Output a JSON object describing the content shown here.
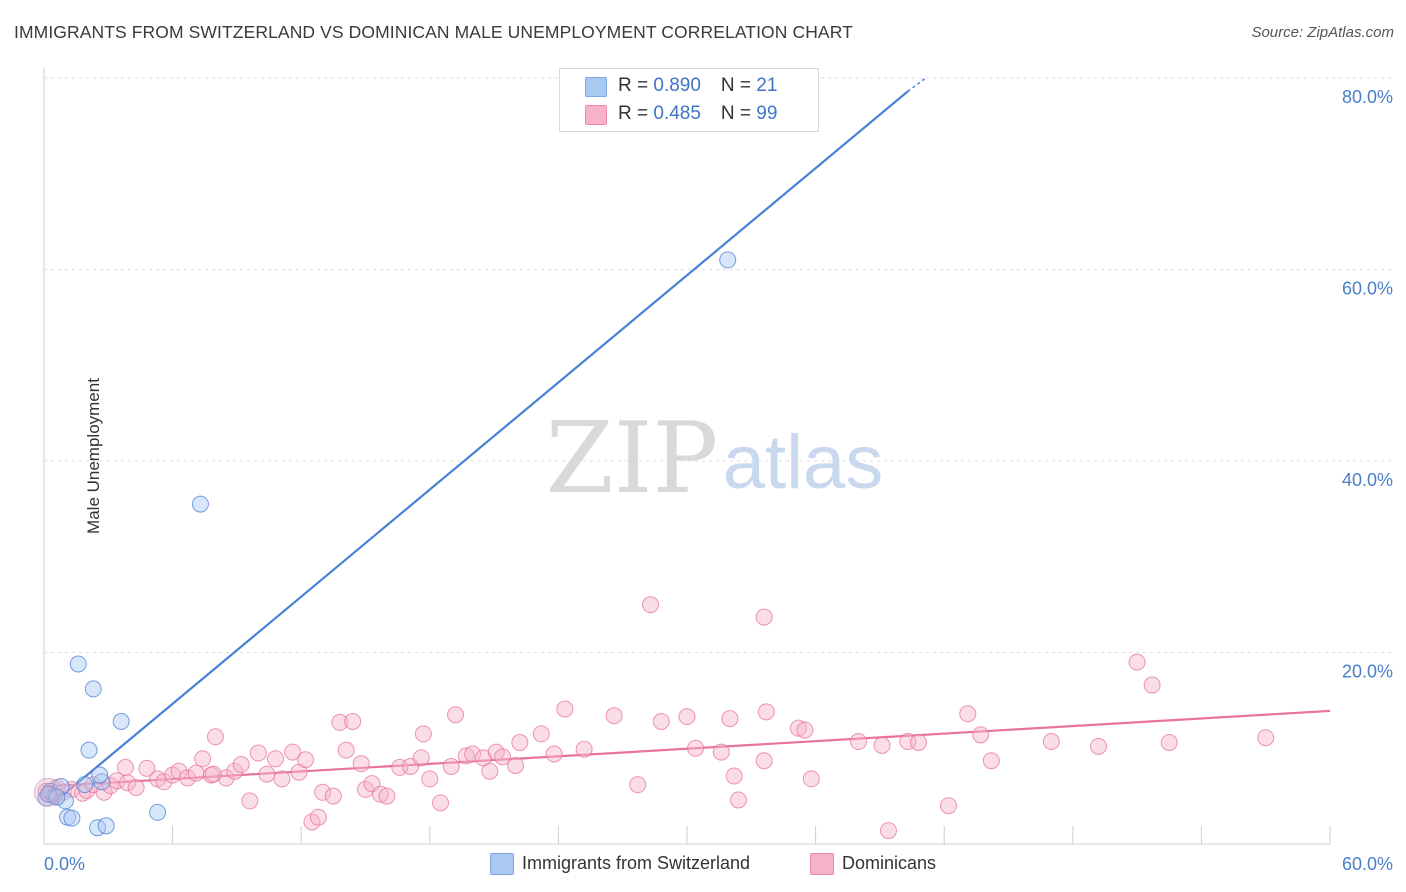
{
  "title": "IMMIGRANTS FROM SWITZERLAND VS DOMINICAN MALE UNEMPLOYMENT CORRELATION CHART",
  "source": "Source: ZipAtlas.com",
  "watermark": {
    "zip": "ZIP",
    "atlas": "atlas"
  },
  "stats": [
    {
      "r_label": "R = ",
      "r_value": "0.890",
      "n_label": "N = ",
      "n_value": "21",
      "color": "#a9c8f2"
    },
    {
      "r_label": "R = ",
      "r_value": "0.485",
      "n_label": "N = ",
      "n_value": "99",
      "color": "#f6b3c8"
    }
  ],
  "legend": [
    {
      "label": "Immigrants from Switzerland",
      "color": "#a9c8f2"
    },
    {
      "label": "Dominicans",
      "color": "#f6b3c8"
    }
  ],
  "chart_data": {
    "type": "scatter",
    "title": "IMMIGRANTS FROM SWITZERLAND VS DOMINICAN MALE UNEMPLOYMENT CORRELATION CHART",
    "xlabel": "",
    "ylabel": "Male Unemployment",
    "xlim": [
      0,
      60
    ],
    "ylim": [
      0,
      80
    ],
    "x_tick_labels": [
      {
        "value": 0,
        "label": "0.0%"
      },
      {
        "value": 60,
        "label": "60.0%"
      }
    ],
    "y_tick_labels": [
      {
        "value": 80,
        "label": "80.0%"
      },
      {
        "value": 60,
        "label": "60.0%"
      },
      {
        "value": 40,
        "label": "40.0%"
      },
      {
        "value": 20,
        "label": "20.0%"
      }
    ],
    "grid": true,
    "legend_position": "bottom-center",
    "series": [
      {
        "name": "Immigrants from Switzerland",
        "color": "#4a7fd4",
        "fill": "#a9c8f2",
        "points": [
          [
            0.1,
            4.8
          ],
          [
            0.3,
            5.5
          ],
          [
            0.5,
            5.0
          ],
          [
            0.8,
            6.0
          ],
          [
            1.0,
            4.5
          ],
          [
            1.1,
            2.8
          ],
          [
            1.3,
            2.7
          ],
          [
            1.6,
            18.8
          ],
          [
            2.1,
            9.8
          ],
          [
            2.3,
            16.2
          ],
          [
            2.5,
            1.7
          ],
          [
            2.7,
            6.5
          ],
          [
            2.6,
            7.2
          ],
          [
            2.9,
            1.9
          ],
          [
            3.6,
            12.8
          ],
          [
            5.3,
            3.3
          ],
          [
            7.3,
            35.5
          ],
          [
            31.9,
            61.0
          ],
          [
            0.2,
            5.2
          ],
          [
            0.6,
            4.9
          ],
          [
            1.9,
            6.2
          ]
        ],
        "trendline": {
          "x": [
            0.4,
            40.3
          ],
          "y": [
            4.2,
            78.6
          ]
        },
        "trendline_dashed": {
          "x": [
            40.3,
            41.2
          ],
          "y": [
            78.6,
            80.1
          ]
        }
      },
      {
        "name": "Dominicans",
        "color": "#e8739c",
        "fill": "#f6b3c8",
        "points": [
          [
            0.1,
            5.5
          ],
          [
            0.3,
            5.2
          ],
          [
            0.6,
            5.9
          ],
          [
            0.9,
            5.4
          ],
          [
            1.3,
            5.7
          ],
          [
            1.8,
            5.3
          ],
          [
            2.0,
            5.6
          ],
          [
            2.3,
            6.2
          ],
          [
            2.8,
            5.4
          ],
          [
            3.1,
            6.1
          ],
          [
            3.4,
            6.6
          ],
          [
            3.9,
            6.4
          ],
          [
            4.3,
            5.9
          ],
          [
            4.8,
            7.9
          ],
          [
            5.3,
            6.8
          ],
          [
            5.6,
            6.5
          ],
          [
            6.0,
            7.2
          ],
          [
            6.3,
            7.6
          ],
          [
            6.7,
            6.9
          ],
          [
            7.1,
            7.4
          ],
          [
            7.4,
            8.9
          ],
          [
            7.8,
            7.2
          ],
          [
            8.0,
            11.2
          ],
          [
            8.5,
            6.9
          ],
          [
            8.9,
            7.6
          ],
          [
            9.2,
            8.3
          ],
          [
            9.6,
            4.5
          ],
          [
            10.0,
            9.5
          ],
          [
            10.4,
            7.3
          ],
          [
            10.8,
            8.9
          ],
          [
            11.1,
            6.8
          ],
          [
            11.6,
            9.6
          ],
          [
            11.9,
            7.5
          ],
          [
            12.2,
            8.8
          ],
          [
            12.5,
            2.3
          ],
          [
            12.8,
            2.8
          ],
          [
            13.0,
            5.4
          ],
          [
            13.5,
            5.0
          ],
          [
            13.8,
            12.7
          ],
          [
            14.1,
            9.8
          ],
          [
            14.4,
            12.8
          ],
          [
            14.8,
            8.4
          ],
          [
            15.0,
            5.7
          ],
          [
            15.3,
            6.3
          ],
          [
            15.7,
            5.2
          ],
          [
            16.0,
            5.0
          ],
          [
            16.6,
            8.0
          ],
          [
            17.1,
            8.1
          ],
          [
            17.6,
            9.0
          ],
          [
            17.7,
            11.5
          ],
          [
            18.0,
            6.8
          ],
          [
            18.5,
            4.3
          ],
          [
            19.0,
            8.1
          ],
          [
            19.2,
            13.5
          ],
          [
            19.7,
            9.2
          ],
          [
            20.0,
            9.4
          ],
          [
            20.5,
            9.0
          ],
          [
            20.8,
            7.6
          ],
          [
            21.1,
            9.6
          ],
          [
            21.4,
            9.1
          ],
          [
            22.0,
            8.2
          ],
          [
            22.2,
            10.6
          ],
          [
            23.2,
            11.5
          ],
          [
            23.8,
            9.4
          ],
          [
            24.3,
            14.1
          ],
          [
            25.2,
            9.9
          ],
          [
            26.6,
            13.4
          ],
          [
            27.7,
            6.2
          ],
          [
            28.3,
            25.0
          ],
          [
            28.8,
            12.8
          ],
          [
            30.0,
            13.3
          ],
          [
            30.4,
            10.0
          ],
          [
            31.6,
            9.6
          ],
          [
            32.0,
            13.1
          ],
          [
            32.2,
            7.1
          ],
          [
            32.4,
            4.6
          ],
          [
            33.6,
            23.7
          ],
          [
            33.6,
            8.7
          ],
          [
            33.7,
            13.8
          ],
          [
            35.2,
            12.1
          ],
          [
            35.5,
            11.9
          ],
          [
            35.8,
            6.8
          ],
          [
            38.0,
            10.7
          ],
          [
            39.1,
            10.3
          ],
          [
            39.4,
            1.4
          ],
          [
            40.3,
            10.7
          ],
          [
            40.8,
            10.6
          ],
          [
            42.2,
            4.0
          ],
          [
            43.1,
            13.6
          ],
          [
            43.7,
            11.4
          ],
          [
            44.2,
            8.7
          ],
          [
            47.0,
            10.7
          ],
          [
            49.2,
            10.2
          ],
          [
            51.0,
            19.0
          ],
          [
            51.7,
            16.6
          ],
          [
            52.5,
            10.6
          ],
          [
            57.0,
            11.1
          ],
          [
            3.8,
            8.0
          ],
          [
            7.9,
            7.3
          ]
        ],
        "trendline": {
          "x": [
            0,
            60
          ],
          "y": [
            6.0,
            13.9
          ]
        }
      }
    ]
  }
}
